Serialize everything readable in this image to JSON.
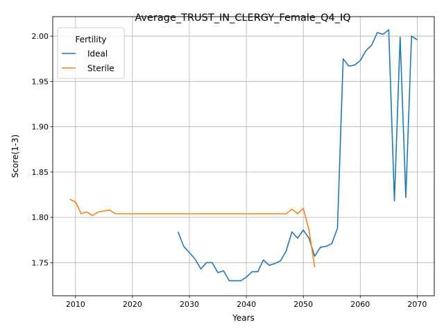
{
  "chart_data": {
    "type": "line",
    "title": "Average_TRUST_IN_CLERGY_Female_Q4_IQ",
    "xlabel": "Years",
    "ylabel": "Score(1-3)",
    "xlim": [
      2006,
      2073
    ],
    "ylim": [
      1.7135,
      2.0215
    ],
    "xticks": [
      2010,
      2020,
      2030,
      2040,
      2050,
      2060,
      2070
    ],
    "yticks": [
      1.75,
      1.8,
      1.85,
      1.9,
      1.95,
      2.0
    ],
    "ytick_labels": [
      "1.75",
      "1.80",
      "1.85",
      "1.90",
      "1.95",
      "2.00"
    ],
    "grid": true,
    "legend": {
      "title": "Fertility",
      "placement": "top-left"
    },
    "series": [
      {
        "name": "Ideal",
        "color": "#1f77b4",
        "x": [
          2028,
          2029,
          2030,
          2031,
          2032,
          2033,
          2034,
          2035,
          2036,
          2037,
          2038,
          2039,
          2040,
          2041,
          2042,
          2043,
          2044,
          2045,
          2046,
          2047,
          2048,
          2049,
          2050,
          2051,
          2052,
          2053,
          2054,
          2055,
          2056,
          2057,
          2058,
          2059,
          2060,
          2061,
          2062,
          2063,
          2064,
          2065,
          2066,
          2067,
          2068,
          2069,
          2070
        ],
        "y": [
          1.784,
          1.768,
          1.761,
          1.754,
          1.743,
          1.75,
          1.75,
          1.739,
          1.741,
          1.73,
          1.73,
          1.73,
          1.734,
          1.74,
          1.74,
          1.753,
          1.747,
          1.749,
          1.752,
          1.763,
          1.784,
          1.777,
          1.786,
          1.777,
          1.757,
          1.767,
          1.768,
          1.771,
          1.788,
          1.975,
          1.967,
          1.968,
          1.973,
          1.984,
          1.99,
          2.004,
          2.002,
          2.007,
          1.818,
          1.999,
          1.822,
          2.0,
          1.996
        ]
      },
      {
        "name": "Sterile",
        "color": "#ff7f0e",
        "x": [
          2009,
          2010,
          2011,
          2012,
          2013,
          2014,
          2015,
          2016,
          2017,
          2018,
          2019,
          2020,
          2021,
          2022,
          2023,
          2024,
          2025,
          2026,
          2027,
          2028,
          2029,
          2030,
          2031,
          2032,
          2033,
          2034,
          2035,
          2036,
          2037,
          2038,
          2039,
          2040,
          2041,
          2042,
          2043,
          2044,
          2045,
          2046,
          2047,
          2048,
          2049,
          2050,
          2051,
          2052
        ],
        "y": [
          1.82,
          1.817,
          1.804,
          1.806,
          1.802,
          1.806,
          1.807,
          1.808,
          1.804,
          1.804,
          1.804,
          1.804,
          1.804,
          1.804,
          1.804,
          1.804,
          1.804,
          1.804,
          1.804,
          1.804,
          1.804,
          1.804,
          1.804,
          1.804,
          1.804,
          1.804,
          1.804,
          1.804,
          1.804,
          1.804,
          1.804,
          1.804,
          1.804,
          1.804,
          1.804,
          1.804,
          1.804,
          1.804,
          1.804,
          1.809,
          1.804,
          1.81,
          1.786,
          1.745
        ]
      }
    ]
  }
}
